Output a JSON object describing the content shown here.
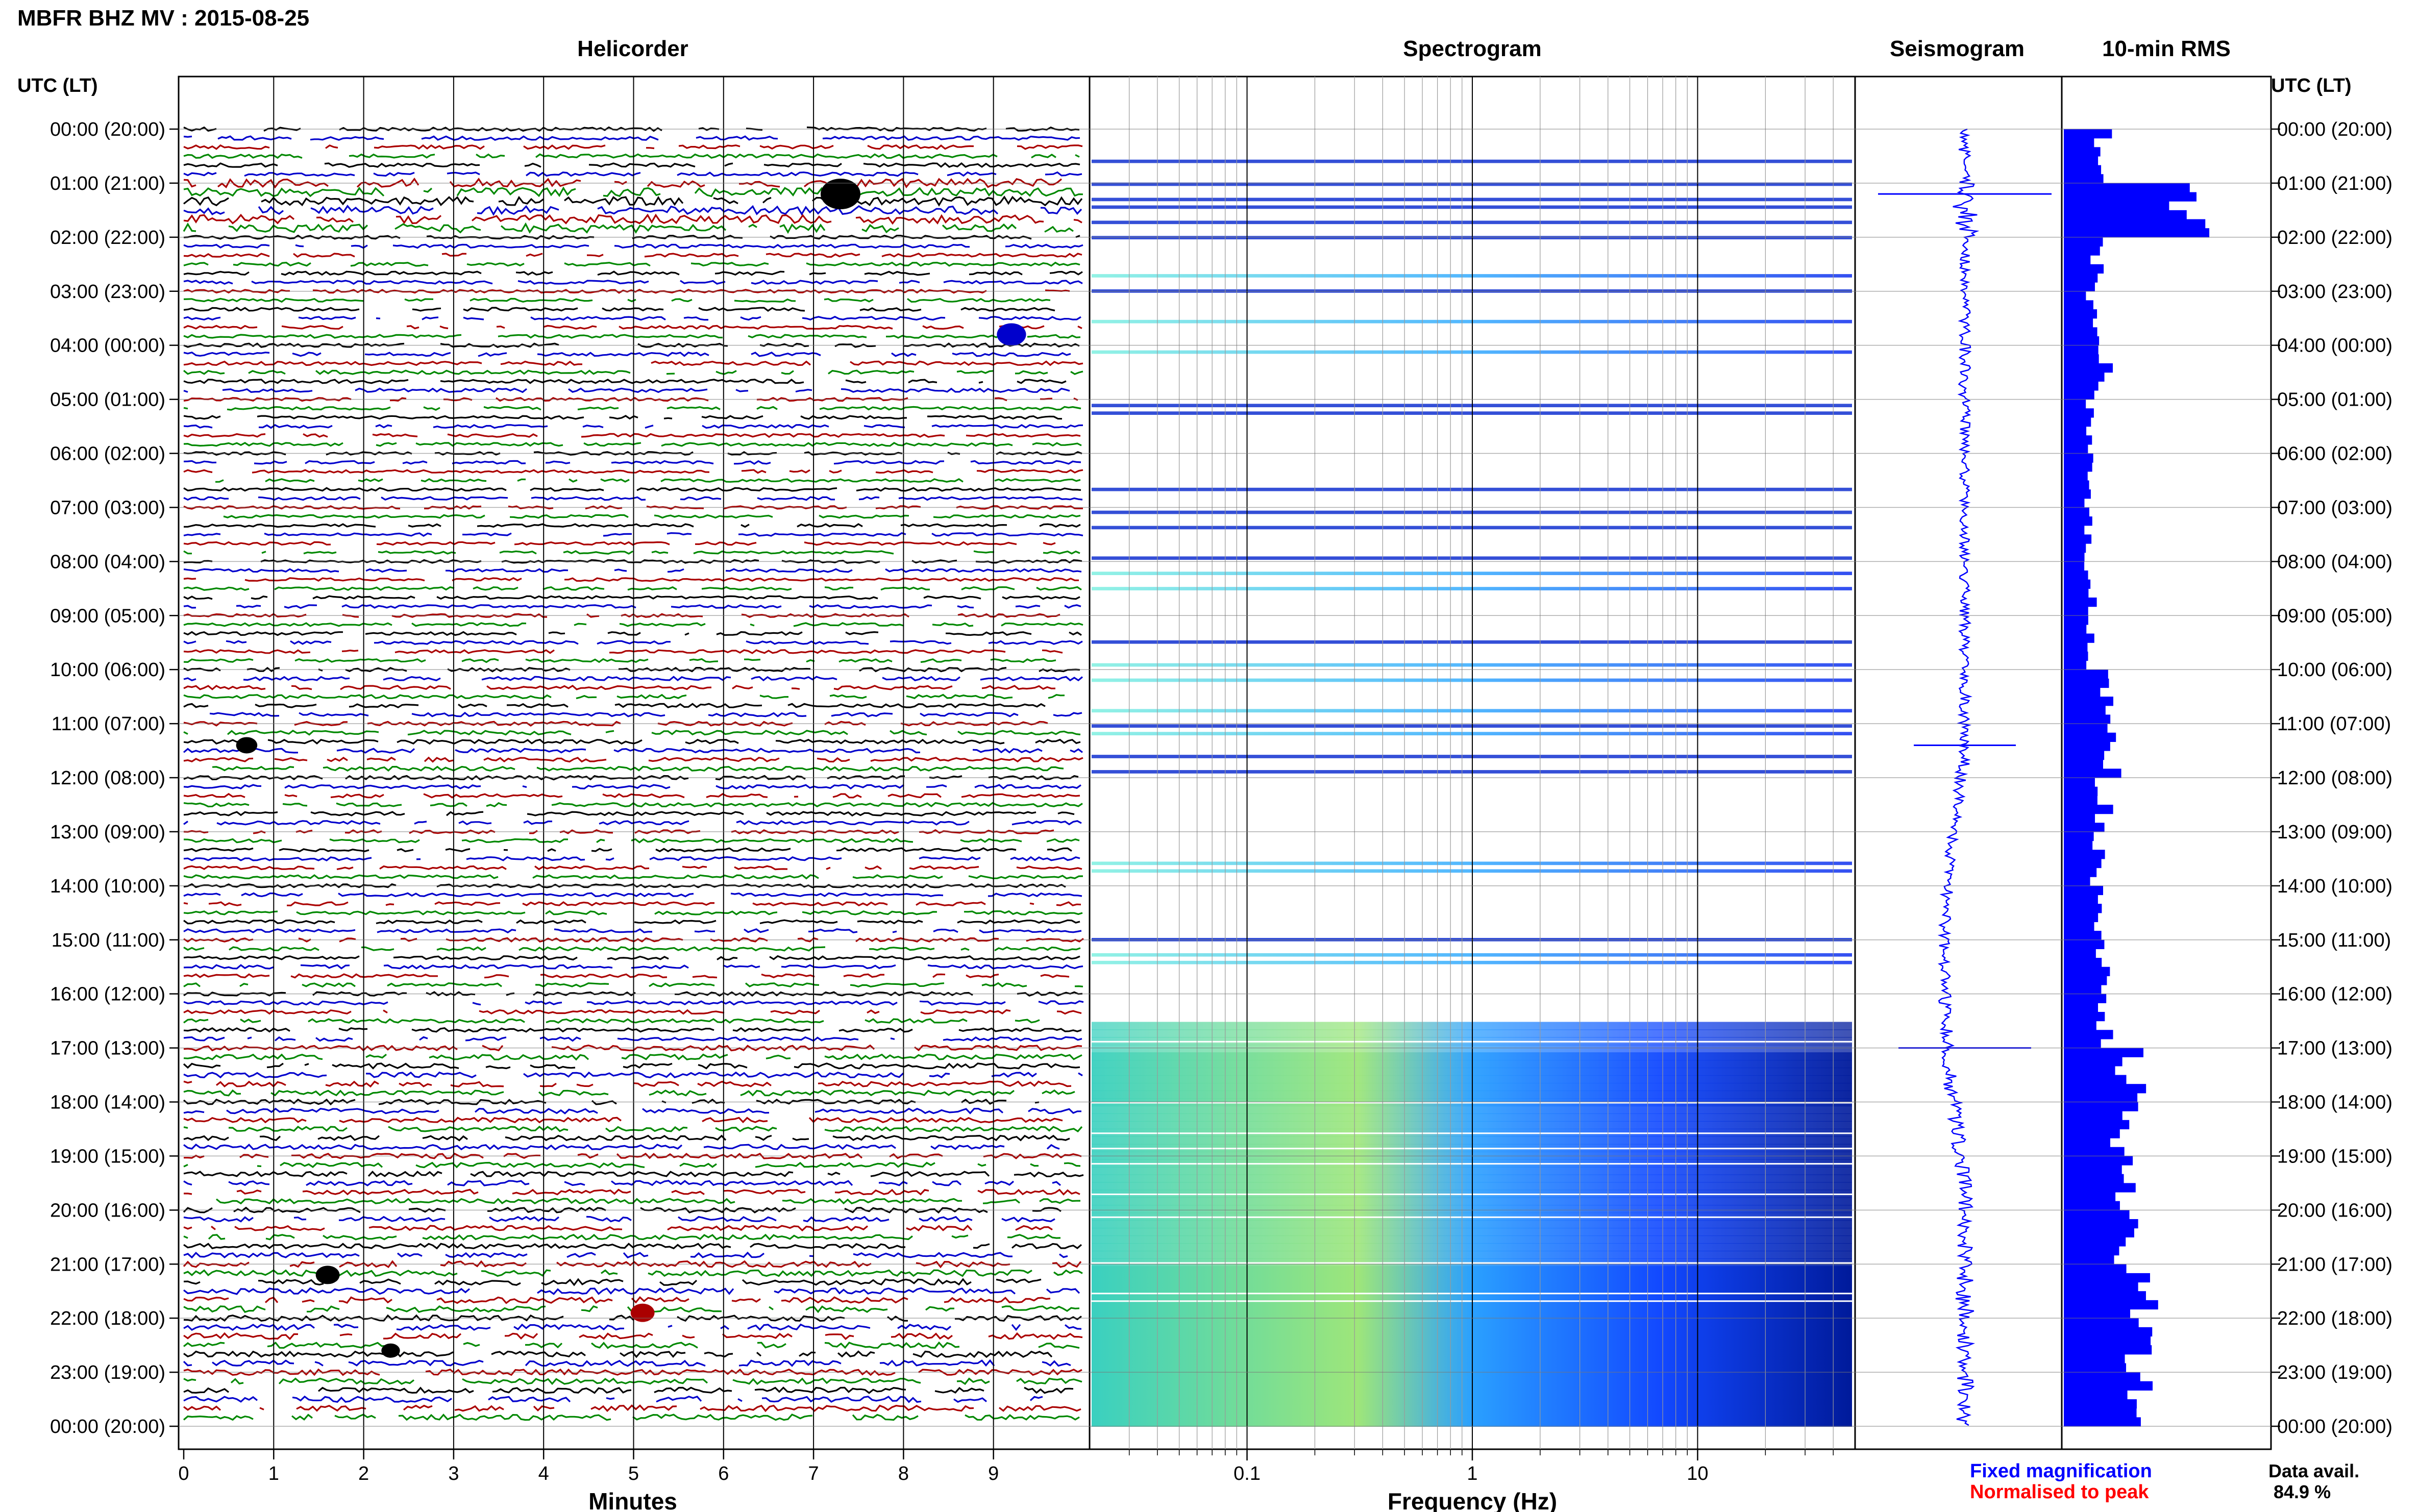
{
  "title": "MBFR BHZ MV : 2015-08-25",
  "panels": {
    "helicorder": "Helicorder",
    "spectrogram": "Spectrogram",
    "seismogram": "Seismogram",
    "rms": "10-min RMS"
  },
  "axis_header": "UTC (LT)",
  "time_labels": [
    "00:00 (20:00)",
    "01:00 (21:00)",
    "02:00 (22:00)",
    "03:00 (23:00)",
    "04:00 (00:00)",
    "05:00 (01:00)",
    "06:00 (02:00)",
    "07:00 (03:00)",
    "08:00 (04:00)",
    "09:00 (05:00)",
    "10:00 (06:00)",
    "11:00 (07:00)",
    "12:00 (08:00)",
    "13:00 (09:00)",
    "14:00 (10:00)",
    "15:00 (11:00)",
    "16:00 (12:00)",
    "17:00 (13:00)",
    "18:00 (14:00)",
    "19:00 (15:00)",
    "20:00 (16:00)",
    "21:00 (17:00)",
    "22:00 (18:00)",
    "23:00 (19:00)",
    "00:00 (20:00)"
  ],
  "helicorder_xlabel": "Minutes",
  "helicorder_ticks": [
    "0",
    "1",
    "2",
    "3",
    "4",
    "5",
    "6",
    "7",
    "8",
    "9"
  ],
  "spectrogram_xlabel": "Frequency (Hz)",
  "spectrogram_ticks": [
    "0.1",
    "1",
    "10"
  ],
  "legend": {
    "fixed": "Fixed magnification",
    "normalised": "Normalised to peak",
    "fixed_color": "#0000ff",
    "normalised_color": "#ff0000"
  },
  "data_avail_label": "Data avail.",
  "data_avail_value": "84.9 %",
  "trace_colors": [
    "#000000",
    "#0000cc",
    "#aa0000",
    "#008800"
  ],
  "chart_data": {
    "type": "heatmap",
    "title": "MBFR BHZ MV : 2015-08-25",
    "helicorder": {
      "xlabel": "Minutes",
      "xlim": [
        0,
        10
      ],
      "rows": 144,
      "row_minutes": 10
    },
    "spectrogram": {
      "xlabel": "Frequency (Hz)",
      "scale": "log",
      "xlim": [
        0.02,
        50
      ]
    },
    "rms": {
      "type": "bar",
      "interval_minutes": 10,
      "hourly_values": [
        0.3,
        0.95,
        0.25,
        0.22,
        0.3,
        0.22,
        0.2,
        0.18,
        0.2,
        0.22,
        0.3,
        0.35,
        0.3,
        0.25,
        0.25,
        0.28,
        0.3,
        0.5,
        0.45,
        0.45,
        0.45,
        0.6,
        0.55,
        0.55
      ],
      "peaks": [
        {
          "hour": 1.2,
          "value": 1.0
        },
        {
          "hour": 17.0,
          "value": 0.6
        },
        {
          "hour": 21.2,
          "value": 0.65
        }
      ]
    }
  }
}
